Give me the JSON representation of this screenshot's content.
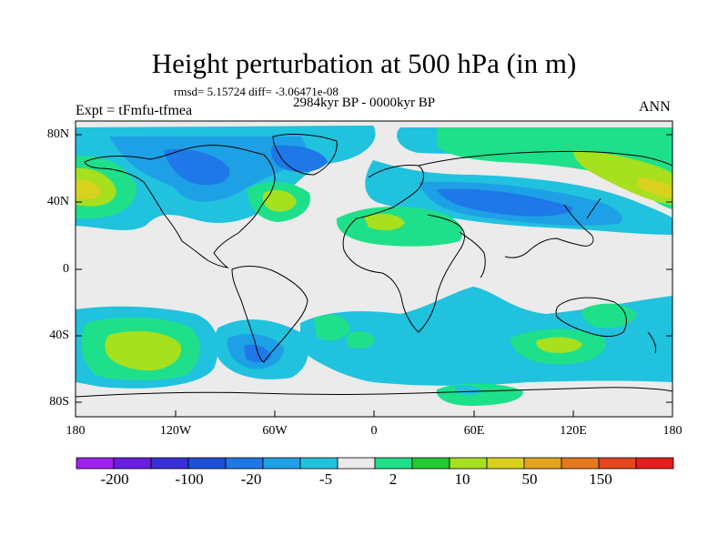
{
  "title": "Height perturbation at 500 hPa (in m)",
  "stats": "rmsd= 5.15724 diff= -3.06471e-08",
  "period": "2984kyr BP - 0000kyr BP",
  "experiment": "Expt = tFmfu-tfmea",
  "season": "ANN",
  "lat_labels": [
    "80N",
    "40N",
    "0",
    "40S",
    "80S"
  ],
  "lon_labels": [
    "180",
    "120W",
    "60W",
    "0",
    "60E",
    "120E",
    "180"
  ],
  "colorbar": {
    "tick_labels": [
      "-200",
      "-100",
      "-20",
      "-5",
      "2",
      "10",
      "50",
      "150"
    ],
    "colors": [
      "#a020f0",
      "#6a1ee0",
      "#3a2ed8",
      "#1d4fd8",
      "#1e78e8",
      "#1ea0e6",
      "#20c2de",
      "#ebebeb",
      "#1ee08a",
      "#22cc30",
      "#a6e01e",
      "#d8d21e",
      "#e6a41e",
      "#e6781e",
      "#e6461e",
      "#e61e1e"
    ]
  },
  "palette": {
    "neutral": "#ebebeb",
    "light_cyan": "#20c2de",
    "blue": "#1ea0e6",
    "dark_blue": "#1e78e8",
    "green": "#1ee08a",
    "lime": "#a6e01e",
    "yellow": "#d8d21e"
  }
}
